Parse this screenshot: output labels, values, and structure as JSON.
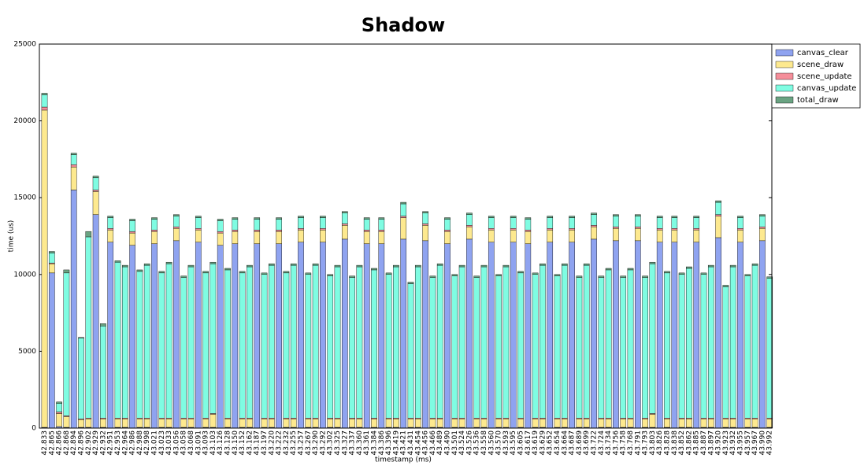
{
  "chart_data": {
    "type": "stacked_bar",
    "title": "Shadow",
    "x_label": "timestamp (ms)",
    "y_label": "time (us)",
    "categories": [
      "42.833",
      "42.865",
      "42.866",
      "42.868",
      "42.894",
      "42.896",
      "42.902",
      "42.929",
      "42.932",
      "42.951",
      "42.953",
      "42.964",
      "42.986",
      "42.988",
      "42.998",
      "43.021",
      "43.023",
      "43.033",
      "43.056",
      "43.058",
      "43.068",
      "43.091",
      "43.093",
      "43.103",
      "43.126",
      "43.128",
      "43.150",
      "43.152",
      "43.162",
      "43.187",
      "43.197",
      "43.220",
      "43.222",
      "43.232",
      "43.255",
      "43.257",
      "43.267",
      "43.290",
      "43.292",
      "43.302",
      "43.325",
      "43.327",
      "43.337",
      "43.360",
      "43.361",
      "43.384",
      "43.386",
      "43.396",
      "43.419",
      "43.421",
      "43.431",
      "43.454",
      "43.456",
      "43.466",
      "43.489",
      "43.490",
      "43.501",
      "43.524",
      "43.526",
      "43.536",
      "43.558",
      "43.560",
      "43.570",
      "43.593",
      "43.595",
      "43.605",
      "43.617",
      "43.619",
      "43.629",
      "43.652",
      "43.654",
      "43.664",
      "43.687",
      "43.689",
      "43.699",
      "43.722",
      "43.724",
      "43.734",
      "43.756",
      "43.758",
      "43.768",
      "43.791",
      "43.793",
      "43.803",
      "43.826",
      "43.828",
      "43.838",
      "43.852",
      "43.862",
      "43.885",
      "43.887",
      "43.897",
      "43.920",
      "43.923",
      "43.932",
      "43.955",
      "43.957",
      "43.967",
      "43.990",
      "43.992"
    ],
    "series": [
      {
        "name": "canvas_clear",
        "color": "#8fa3f0",
        "values": [
          50,
          10100,
          100,
          50,
          15500,
          50,
          50,
          13900,
          50,
          12100,
          50,
          50,
          11900,
          50,
          50,
          12000,
          50,
          50,
          12200,
          50,
          50,
          12100,
          50,
          50,
          11900,
          50,
          12000,
          50,
          50,
          12000,
          50,
          50,
          12000,
          50,
          50,
          12100,
          50,
          50,
          12100,
          50,
          50,
          12300,
          50,
          50,
          12000,
          50,
          12000,
          50,
          50,
          12300,
          50,
          50,
          12200,
          50,
          50,
          12000,
          50,
          50,
          12300,
          50,
          50,
          12100,
          50,
          50,
          12100,
          50,
          12000,
          50,
          50,
          12100,
          50,
          50,
          12100,
          50,
          50,
          12300,
          50,
          50,
          12200,
          50,
          50,
          12200,
          50,
          50,
          12100,
          50,
          12100,
          50,
          50,
          12100,
          50,
          50,
          12400,
          50,
          50,
          12100,
          50,
          50,
          12200,
          50
        ]
      },
      {
        "name": "scene_draw",
        "color": "#fde98f",
        "values": [
          20650,
          600,
          850,
          700,
          1500,
          500,
          550,
          1500,
          550,
          800,
          550,
          550,
          800,
          550,
          550,
          800,
          550,
          550,
          800,
          550,
          550,
          800,
          550,
          850,
          800,
          550,
          800,
          550,
          550,
          800,
          550,
          550,
          800,
          550,
          550,
          800,
          550,
          550,
          800,
          550,
          550,
          900,
          550,
          550,
          800,
          550,
          800,
          550,
          550,
          1400,
          550,
          550,
          1000,
          550,
          550,
          800,
          550,
          550,
          800,
          550,
          550,
          800,
          550,
          550,
          800,
          550,
          800,
          550,
          550,
          800,
          550,
          550,
          800,
          550,
          550,
          800,
          550,
          550,
          800,
          550,
          550,
          800,
          550,
          850,
          800,
          550,
          800,
          550,
          550,
          800,
          550,
          550,
          1400,
          550,
          550,
          800,
          550,
          550,
          800,
          550
        ]
      },
      {
        "name": "scene_update",
        "color": "#f58e9a",
        "values": [
          200,
          50,
          100,
          50,
          150,
          50,
          50,
          100,
          50,
          100,
          50,
          50,
          100,
          50,
          50,
          100,
          50,
          50,
          100,
          50,
          50,
          100,
          50,
          50,
          100,
          50,
          100,
          50,
          50,
          100,
          50,
          50,
          100,
          50,
          50,
          100,
          50,
          50,
          100,
          50,
          50,
          100,
          50,
          50,
          100,
          50,
          100,
          50,
          50,
          100,
          50,
          50,
          100,
          50,
          50,
          100,
          50,
          50,
          100,
          50,
          50,
          100,
          50,
          50,
          100,
          50,
          100,
          50,
          50,
          100,
          50,
          50,
          100,
          50,
          50,
          100,
          50,
          50,
          100,
          50,
          50,
          100,
          50,
          50,
          100,
          50,
          100,
          50,
          50,
          100,
          50,
          50,
          100,
          50,
          50,
          100,
          50,
          50,
          100,
          50
        ]
      },
      {
        "name": "canvas_update",
        "color": "#7ffce2",
        "values": [
          800,
          650,
          550,
          9300,
          650,
          5250,
          11800,
          800,
          6000,
          700,
          10150,
          9850,
          700,
          9550,
          9950,
          700,
          9450,
          10050,
          700,
          9150,
          9850,
          700,
          9450,
          9750,
          700,
          9650,
          700,
          9450,
          9850,
          700,
          9350,
          9950,
          700,
          9450,
          9950,
          700,
          9350,
          9950,
          700,
          9250,
          9850,
          700,
          9150,
          9850,
          700,
          9650,
          700,
          9350,
          9850,
          800,
          8750,
          9850,
          700,
          9150,
          9950,
          700,
          9250,
          9850,
          700,
          9150,
          9850,
          700,
          9250,
          9850,
          700,
          9450,
          700,
          9350,
          9950,
          700,
          9250,
          9950,
          700,
          9150,
          9950,
          700,
          9150,
          9650,
          700,
          9150,
          9650,
          700,
          9150,
          9750,
          700,
          9450,
          700,
          9350,
          9750,
          700,
          9350,
          9850,
          800,
          8550,
          9850,
          700,
          9250,
          9950,
          700,
          9100
        ]
      },
      {
        "name": "total_draw",
        "color": "#6aa382",
        "values": [
          100,
          100,
          100,
          200,
          100,
          50,
          350,
          100,
          150,
          100,
          100,
          100,
          100,
          100,
          100,
          100,
          100,
          100,
          100,
          100,
          100,
          100,
          100,
          100,
          100,
          100,
          100,
          100,
          100,
          100,
          100,
          100,
          100,
          100,
          100,
          100,
          100,
          100,
          100,
          100,
          100,
          100,
          100,
          100,
          100,
          100,
          100,
          100,
          100,
          100,
          100,
          100,
          100,
          100,
          100,
          100,
          100,
          100,
          100,
          100,
          100,
          100,
          100,
          100,
          100,
          100,
          100,
          100,
          100,
          100,
          100,
          100,
          100,
          100,
          100,
          100,
          100,
          100,
          100,
          100,
          100,
          100,
          100,
          100,
          100,
          100,
          100,
          100,
          100,
          100,
          100,
          100,
          100,
          100,
          100,
          100,
          100,
          100,
          100,
          100
        ]
      }
    ],
    "ylim": [
      0,
      25000
    ],
    "yticks": [
      0,
      5000,
      10000,
      15000,
      20000,
      25000
    ],
    "grid": false,
    "legend": "outside-upper-right"
  }
}
